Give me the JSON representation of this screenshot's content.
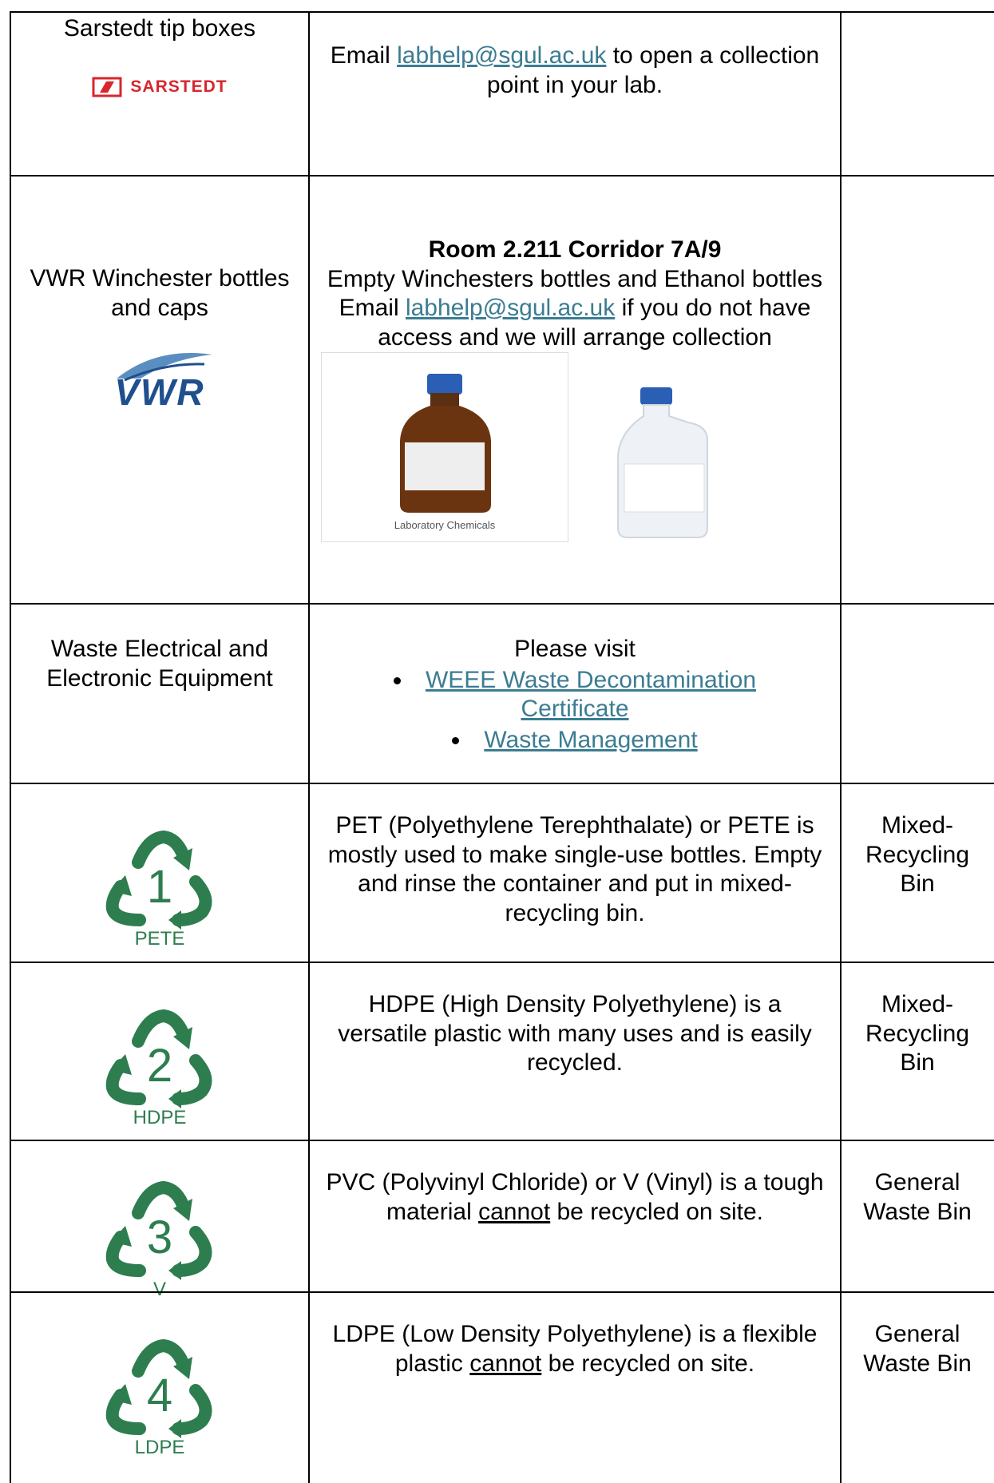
{
  "rows": [
    {
      "item": "Sarstedt tip boxes",
      "logo": "SARSTEDT",
      "description": {
        "before": "Email ",
        "link": "labhelp@sgul.ac.uk",
        "after": " to open a collection point in your lab."
      }
    },
    {
      "item": "VWR Winchester bottles and caps",
      "logo": "VWR",
      "description": {
        "heading": "Room 2.211 Corridor 7A/9",
        "line": "Empty Winchesters bottles and Ethanol bottles",
        "before": "Email ",
        "link": "labhelp@sgul.ac.uk",
        "after": " if you do not have access and we will arrange collection"
      },
      "image_caption": "Laboratory Chemicals"
    },
    {
      "item": "Waste Electrical and Electronic Equipment",
      "description": {
        "intro": "Please visit",
        "links": [
          "WEEE Waste Decontamination Certificate",
          "Waste Management"
        ]
      }
    },
    {
      "symbol": {
        "number": "1",
        "code": "PETE"
      },
      "description": {
        "text": "PET (Polyethylene Terephthalate) or PETE is mostly used to make single-use bottles. Empty and rinse the container and put in mixed- recycling bin."
      },
      "bin": "Mixed-Recycling Bin"
    },
    {
      "symbol": {
        "number": "2",
        "code": "HDPE"
      },
      "description": {
        "text": "HDPE (High Density Polyethylene) is a versatile plastic with many uses and is easily recycled."
      },
      "bin": "Mixed-Recycling Bin"
    },
    {
      "symbol": {
        "number": "3",
        "code": "V"
      },
      "description": {
        "before": "PVC (Polyvinyl Chloride) or V (Vinyl) is a tough material ",
        "underlined": "cannot",
        "after": " be recycled on site."
      },
      "bin": "General Waste Bin"
    },
    {
      "symbol": {
        "number": "4",
        "code": "LDPE"
      },
      "description": {
        "before": "LDPE (Low Density Polyethylene) is a flexible plastic ",
        "underlined": "cannot",
        "after": " be recycled on site."
      },
      "bin": "General Waste Bin"
    }
  ]
}
